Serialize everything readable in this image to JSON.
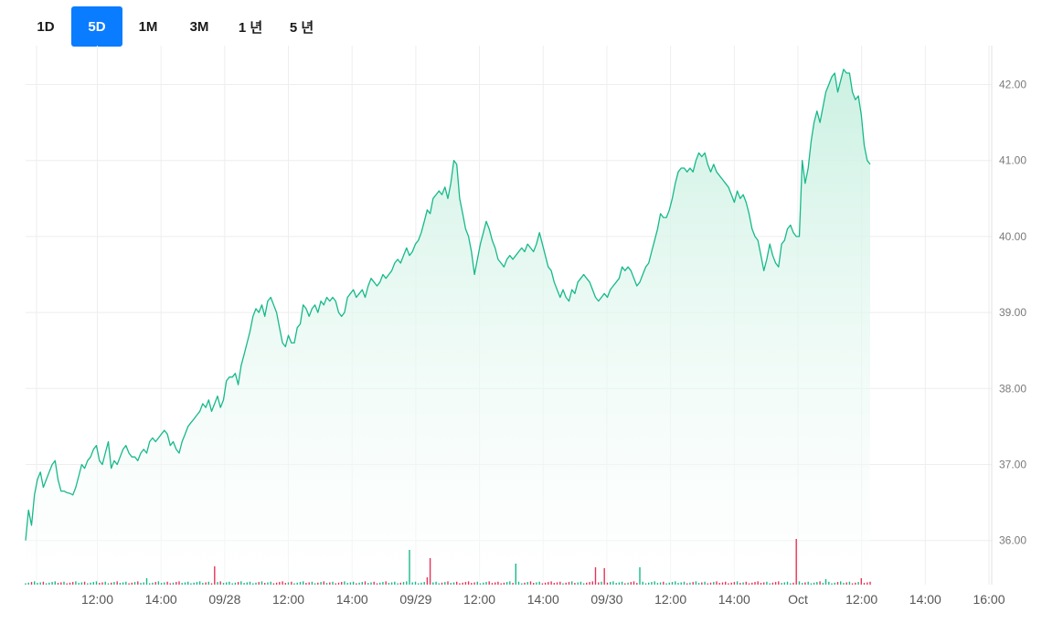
{
  "range_tabs": [
    {
      "label": "1D",
      "active": false
    },
    {
      "label": "5D",
      "active": true
    },
    {
      "label": "1M",
      "active": false
    },
    {
      "label": "3M",
      "active": false
    },
    {
      "label": "1 년",
      "active": false
    },
    {
      "label": "5 년",
      "active": false
    }
  ],
  "colors": {
    "line": "#16b98a",
    "fill_top": "#c9f0e1",
    "vol_up": "#16b98a",
    "vol_down": "#e8335a",
    "grid": "#eeeeee",
    "tab_active_bg": "#0a7cff"
  },
  "chart_data": {
    "type": "area",
    "title": "",
    "xlabel": "",
    "ylabel": "",
    "ylim": [
      35.4,
      42.6
    ],
    "y_ticks": [
      "36.00",
      "37.00",
      "38.00",
      "39.00",
      "40.00",
      "41.00",
      "42.00"
    ],
    "x_ticks": [
      "12:00",
      "14:00",
      "09/28",
      "12:00",
      "14:00",
      "09/29",
      "12:00",
      "14:00",
      "09/30",
      "12:00",
      "14:00",
      "Oct",
      "12:00",
      "14:00",
      "16:00"
    ],
    "grid": true,
    "series": [
      {
        "values": [
          36.0,
          36.4,
          36.2,
          36.6,
          36.8,
          36.9,
          36.7,
          36.8,
          36.9,
          37.0,
          37.05,
          36.8,
          36.65,
          36.65,
          36.63,
          36.62,
          36.6,
          36.7,
          36.85,
          37.0,
          36.95,
          37.05,
          37.1,
          37.2,
          37.25,
          37.05,
          37.0,
          37.15,
          37.3,
          36.95,
          37.05,
          37.0,
          37.1,
          37.2,
          37.25,
          37.15,
          37.1,
          37.1,
          37.05,
          37.15,
          37.2,
          37.15,
          37.3,
          37.35,
          37.3,
          37.35,
          37.4,
          37.45,
          37.4,
          37.25,
          37.3,
          37.2,
          37.15,
          37.3,
          37.4,
          37.5,
          37.55,
          37.6,
          37.65,
          37.7,
          37.8,
          37.75,
          37.85,
          37.7,
          37.8,
          37.9,
          37.75,
          37.85,
          38.1,
          38.15,
          38.15,
          38.2,
          38.05,
          38.3,
          38.45,
          38.6,
          38.75,
          38.95,
          39.05,
          39.0,
          39.1,
          38.95,
          39.15,
          39.2,
          39.1,
          39.0,
          38.8,
          38.6,
          38.55,
          38.7,
          38.6,
          38.6,
          38.8,
          38.85,
          39.1,
          39.05,
          38.95,
          39.05,
          39.1,
          39.0,
          39.15,
          39.1,
          39.2,
          39.15,
          39.2,
          39.15,
          39.0,
          38.95,
          39.0,
          39.2,
          39.25,
          39.3,
          39.2,
          39.25,
          39.3,
          39.2,
          39.35,
          39.45,
          39.4,
          39.35,
          39.4,
          39.5,
          39.45,
          39.5,
          39.55,
          39.65,
          39.7,
          39.65,
          39.75,
          39.85,
          39.75,
          39.8,
          39.9,
          39.95,
          40.05,
          40.2,
          40.35,
          40.3,
          40.5,
          40.55,
          40.6,
          40.55,
          40.65,
          40.5,
          40.7,
          41.0,
          40.95,
          40.5,
          40.3,
          40.1,
          40.0,
          39.8,
          39.5,
          39.7,
          39.9,
          40.05,
          40.2,
          40.1,
          39.95,
          39.85,
          39.7,
          39.65,
          39.6,
          39.7,
          39.75,
          39.7,
          39.75,
          39.8,
          39.85,
          39.8,
          39.9,
          39.85,
          39.8,
          39.9,
          40.05,
          39.9,
          39.75,
          39.6,
          39.55,
          39.4,
          39.3,
          39.2,
          39.3,
          39.2,
          39.15,
          39.3,
          39.25,
          39.4,
          39.45,
          39.5,
          39.45,
          39.4,
          39.3,
          39.2,
          39.15,
          39.2,
          39.25,
          39.2,
          39.3,
          39.35,
          39.4,
          39.45,
          39.6,
          39.55,
          39.6,
          39.55,
          39.45,
          39.35,
          39.4,
          39.5,
          39.6,
          39.65,
          39.8,
          39.95,
          40.1,
          40.3,
          40.25,
          40.25,
          40.35,
          40.5,
          40.7,
          40.85,
          40.9,
          40.9,
          40.85,
          40.9,
          40.85,
          41.0,
          41.1,
          41.05,
          41.1,
          40.95,
          40.85,
          40.95,
          40.85,
          40.8,
          40.75,
          40.7,
          40.65,
          40.55,
          40.45,
          40.6,
          40.5,
          40.55,
          40.45,
          40.3,
          40.1,
          40.0,
          39.95,
          39.75,
          39.55,
          39.7,
          39.9,
          39.75,
          39.65,
          39.6,
          39.9,
          39.95,
          40.1,
          40.15,
          40.05,
          40.0,
          40.0,
          41.0,
          40.7,
          40.9,
          41.25,
          41.5,
          41.65,
          41.5,
          41.7,
          41.9,
          42.0,
          42.1,
          42.15,
          41.9,
          42.05,
          42.2,
          42.15,
          42.15,
          41.9,
          41.8,
          41.85,
          41.6,
          41.2,
          41.0,
          40.95
        ]
      }
    ]
  }
}
